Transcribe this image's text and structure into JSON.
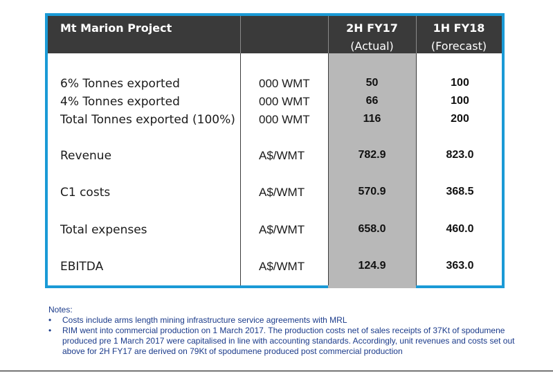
{
  "table": {
    "title": "Mt Marion Project",
    "col_actual_line1": "2H FY17",
    "col_actual_line2": "(Actual)",
    "col_forecast_line1": "1H FY18",
    "col_forecast_line2": "(Forecast)",
    "rows": [
      {
        "label": "6% Tonnes exported",
        "unit": "000 WMT",
        "actual": "50",
        "forecast": "100"
      },
      {
        "label": "4% Tonnes exported",
        "unit": "000 WMT",
        "actual": "66",
        "forecast": "100"
      },
      {
        "label": "Total Tonnes exported (100%)",
        "unit": "000 WMT",
        "actual": "116",
        "forecast": "200"
      },
      {
        "label": "Revenue",
        "unit": "A$/WMT",
        "actual": "782.9",
        "forecast": "823.0"
      },
      {
        "label": "C1 costs",
        "unit": "A$/WMT",
        "actual": "570.9",
        "forecast": "368.5"
      },
      {
        "label": "Total expenses",
        "unit": "A$/WMT",
        "actual": "658.0",
        "forecast": "460.0"
      },
      {
        "label": "EBITDA",
        "unit": "A$/WMT",
        "actual": "124.9",
        "forecast": "363.0"
      }
    ]
  },
  "notes": {
    "heading": "Notes:",
    "items": [
      "Costs include arms length mining infrastructure service agreements with MRL",
      "RIM went into commercial production on 1 March 2017.  The production costs net of sales receipts of 37Kt of spodumene produced pre 1 March 2017 were capitalised in line with accounting standards. Accordingly, unit revenues and costs set out above for 2H FY17 are derived on 79Kt of spodumene produced post commercial production"
    ]
  },
  "colors": {
    "frame": "#1a9ad6",
    "header": "#3a3a3a",
    "actual_column": "#b8b8b8",
    "notes_text": "#1a3a8a"
  }
}
